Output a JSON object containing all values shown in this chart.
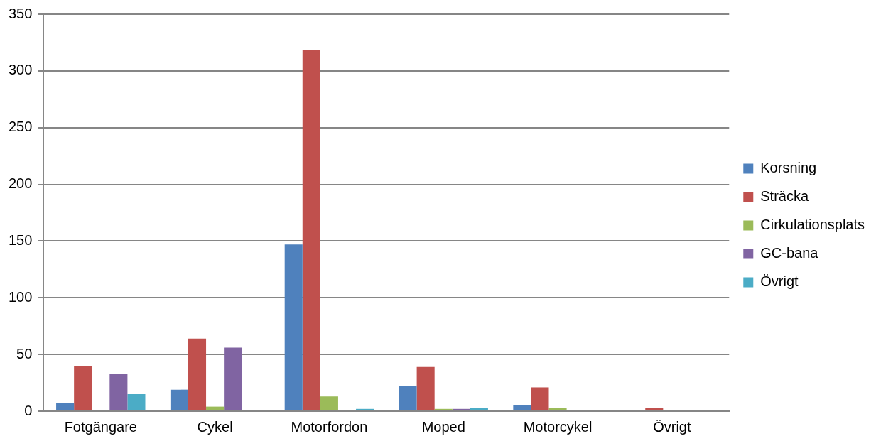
{
  "chart_data": {
    "type": "bar",
    "categories": [
      "Fotgängare",
      "Cykel",
      "Motorfordon",
      "Moped",
      "Motorcykel",
      "Övrigt"
    ],
    "series": [
      {
        "name": "Korsning",
        "color": "#4f81bd",
        "values": [
          7,
          19,
          147,
          22,
          5,
          0
        ]
      },
      {
        "name": "Sträcka",
        "color": "#c0504d",
        "values": [
          40,
          64,
          318,
          39,
          21,
          3
        ]
      },
      {
        "name": "Cirkulationsplats",
        "color": "#9bbb59",
        "values": [
          0,
          4,
          13,
          2,
          3,
          0
        ]
      },
      {
        "name": "GC-bana",
        "color": "#8064a2",
        "values": [
          33,
          56,
          0,
          2,
          0,
          0
        ]
      },
      {
        "name": "Övrigt",
        "color": "#4bacc6",
        "values": [
          15,
          1,
          2,
          3,
          0,
          0
        ]
      }
    ],
    "ylim": [
      0,
      350
    ],
    "yticks": [
      0,
      50,
      100,
      150,
      200,
      250,
      300,
      350
    ],
    "grid": "y",
    "legend": "right"
  }
}
